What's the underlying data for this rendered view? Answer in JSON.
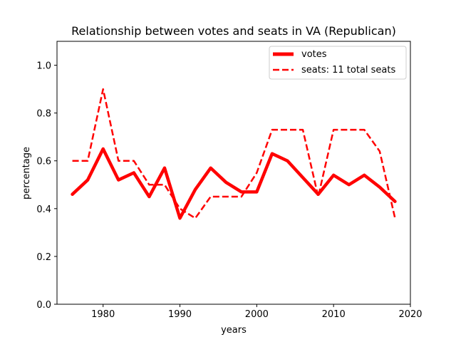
{
  "chart_data": {
    "type": "line",
    "title": "Relationship between votes and seats in VA (Republican)",
    "xlabel": "years",
    "ylabel": "percentage",
    "xlim": [
      1974,
      2020
    ],
    "ylim": [
      0.0,
      1.1
    ],
    "xticks": [
      1980,
      1990,
      2000,
      2010,
      2020
    ],
    "yticks": [
      0.0,
      0.2,
      0.4,
      0.6,
      0.8,
      1.0
    ],
    "xtick_labels": [
      "1980",
      "1990",
      "2000",
      "2010",
      "2020"
    ],
    "ytick_labels": [
      "0.0",
      "0.2",
      "0.4",
      "0.6",
      "0.8",
      "1.0"
    ],
    "grid": false,
    "legend_position": "top-right",
    "x": [
      1976,
      1978,
      1980,
      1982,
      1984,
      1986,
      1988,
      1990,
      1992,
      1994,
      1996,
      1998,
      2000,
      2002,
      2004,
      2006,
      2008,
      2010,
      2012,
      2014,
      2016,
      2018
    ],
    "series": [
      {
        "name": "votes",
        "style": "solid",
        "color": "#ff0000",
        "values": [
          0.46,
          0.52,
          0.65,
          0.52,
          0.55,
          0.45,
          0.57,
          0.36,
          0.48,
          0.57,
          0.51,
          0.47,
          0.47,
          0.63,
          0.6,
          0.53,
          0.46,
          0.54,
          0.5,
          0.54,
          0.49,
          0.43
        ]
      },
      {
        "name": "seats: 11 total seats",
        "style": "dashed",
        "color": "#ff0000",
        "values": [
          0.6,
          0.6,
          0.9,
          0.6,
          0.6,
          0.5,
          0.5,
          0.4,
          0.36,
          0.45,
          0.45,
          0.45,
          0.55,
          0.73,
          0.73,
          0.73,
          0.45,
          0.73,
          0.73,
          0.73,
          0.64,
          0.36
        ]
      }
    ]
  }
}
